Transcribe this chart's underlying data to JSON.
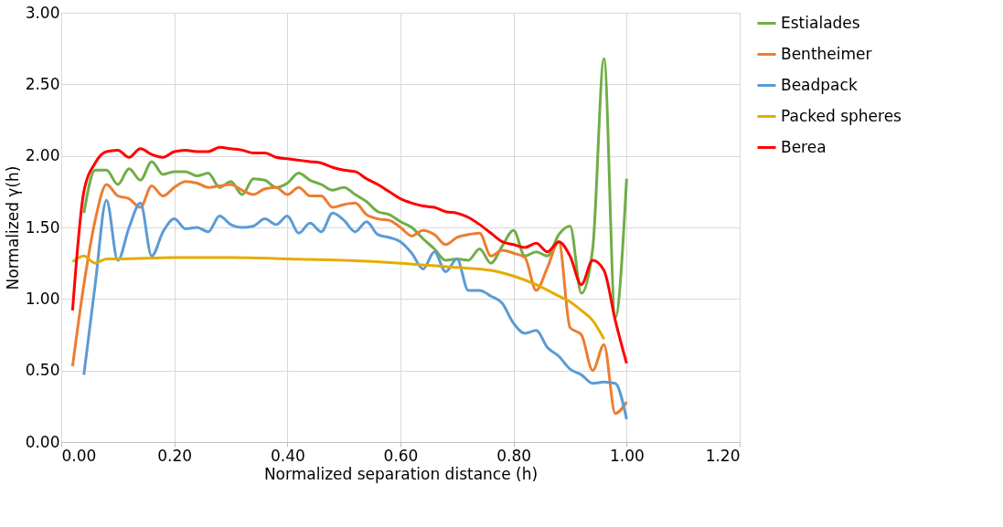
{
  "chart_data": {
    "type": "line",
    "xlabel": "Normalized separation distance (h)",
    "ylabel": "Normalized γ(h)",
    "xlim": [
      0,
      1.2
    ],
    "ylim": [
      0,
      3
    ],
    "xticks": [
      {
        "value": 0,
        "label": "0.00"
      },
      {
        "value": 0.2,
        "label": "0.20"
      },
      {
        "value": 0.4,
        "label": "0.40"
      },
      {
        "value": 0.6,
        "label": "0.60"
      },
      {
        "value": 0.8,
        "label": "0.80"
      },
      {
        "value": 1.0,
        "label": "1.00"
      },
      {
        "value": 1.2,
        "label": "1.20"
      }
    ],
    "yticks": [
      {
        "value": 0,
        "label": "0.00"
      },
      {
        "value": 0.5,
        "label": "0.50"
      },
      {
        "value": 1.0,
        "label": "1.00"
      },
      {
        "value": 1.5,
        "label": "1.50"
      },
      {
        "value": 2.0,
        "label": "2.00"
      },
      {
        "value": 2.5,
        "label": "2.50"
      },
      {
        "value": 3.0,
        "label": "3.00"
      }
    ],
    "grid": true,
    "legend": "right",
    "marker": "none",
    "line_style": "solid",
    "series": [
      {
        "name": "Estialades",
        "color": "#70ad47",
        "x": [
          0.04,
          0.06,
          0.08,
          0.1,
          0.12,
          0.14,
          0.16,
          0.18,
          0.2,
          0.22,
          0.24,
          0.26,
          0.28,
          0.3,
          0.32,
          0.34,
          0.36,
          0.38,
          0.4,
          0.42,
          0.44,
          0.46,
          0.48,
          0.5,
          0.52,
          0.54,
          0.56,
          0.58,
          0.6,
          0.62,
          0.64,
          0.66,
          0.68,
          0.7,
          0.72,
          0.74,
          0.76,
          0.78,
          0.8,
          0.82,
          0.84,
          0.86,
          0.88,
          0.9,
          0.92,
          0.94,
          0.96,
          0.98,
          1.0
        ],
        "values": [
          1.6,
          1.9,
          1.9,
          1.8,
          1.91,
          1.83,
          1.96,
          1.87,
          1.89,
          1.89,
          1.86,
          1.88,
          1.78,
          1.82,
          1.73,
          1.84,
          1.83,
          1.78,
          1.81,
          1.88,
          1.83,
          1.8,
          1.76,
          1.78,
          1.73,
          1.68,
          1.61,
          1.59,
          1.54,
          1.5,
          1.42,
          1.35,
          1.27,
          1.28,
          1.27,
          1.35,
          1.25,
          1.37,
          1.48,
          1.3,
          1.33,
          1.3,
          1.45,
          1.51,
          1.04,
          1.35,
          2.68,
          0.87,
          1.84
        ]
      },
      {
        "name": "Bentheimer",
        "color": "#ed7d31",
        "x": [
          0.02,
          0.04,
          0.06,
          0.08,
          0.1,
          0.12,
          0.14,
          0.16,
          0.18,
          0.2,
          0.22,
          0.24,
          0.26,
          0.28,
          0.3,
          0.32,
          0.34,
          0.36,
          0.38,
          0.4,
          0.42,
          0.44,
          0.46,
          0.48,
          0.5,
          0.52,
          0.54,
          0.56,
          0.58,
          0.6,
          0.62,
          0.64,
          0.66,
          0.68,
          0.7,
          0.72,
          0.74,
          0.76,
          0.78,
          0.8,
          0.82,
          0.84,
          0.86,
          0.88,
          0.9,
          0.92,
          0.94,
          0.96,
          0.98,
          1.0
        ],
        "values": [
          0.53,
          1.1,
          1.55,
          1.8,
          1.72,
          1.7,
          1.64,
          1.79,
          1.72,
          1.78,
          1.82,
          1.81,
          1.78,
          1.79,
          1.8,
          1.76,
          1.73,
          1.77,
          1.78,
          1.73,
          1.78,
          1.72,
          1.72,
          1.64,
          1.66,
          1.67,
          1.59,
          1.56,
          1.55,
          1.5,
          1.44,
          1.48,
          1.45,
          1.38,
          1.43,
          1.45,
          1.46,
          1.3,
          1.34,
          1.32,
          1.29,
          1.06,
          1.22,
          1.4,
          0.8,
          0.75,
          0.5,
          0.68,
          0.2,
          0.28
        ]
      },
      {
        "name": "Beadpack",
        "color": "#5b9bd5",
        "x": [
          0.04,
          0.06,
          0.08,
          0.1,
          0.12,
          0.14,
          0.16,
          0.18,
          0.2,
          0.22,
          0.24,
          0.26,
          0.28,
          0.3,
          0.32,
          0.34,
          0.36,
          0.38,
          0.4,
          0.42,
          0.44,
          0.46,
          0.48,
          0.5,
          0.52,
          0.54,
          0.56,
          0.58,
          0.6,
          0.62,
          0.64,
          0.66,
          0.68,
          0.7,
          0.72,
          0.74,
          0.76,
          0.78,
          0.8,
          0.82,
          0.84,
          0.86,
          0.88,
          0.9,
          0.92,
          0.94,
          0.96,
          0.98,
          1.0
        ],
        "values": [
          0.47,
          1.1,
          1.69,
          1.27,
          1.5,
          1.67,
          1.3,
          1.47,
          1.56,
          1.49,
          1.5,
          1.47,
          1.58,
          1.52,
          1.5,
          1.51,
          1.56,
          1.52,
          1.58,
          1.46,
          1.53,
          1.47,
          1.6,
          1.55,
          1.47,
          1.54,
          1.45,
          1.43,
          1.4,
          1.32,
          1.21,
          1.33,
          1.19,
          1.28,
          1.06,
          1.06,
          1.02,
          0.97,
          0.83,
          0.76,
          0.78,
          0.66,
          0.6,
          0.51,
          0.47,
          0.41,
          0.42,
          0.41,
          0.16
        ]
      },
      {
        "name": "Packed spheres",
        "color": "#e5ac00",
        "x": [
          0.02,
          0.04,
          0.06,
          0.08,
          0.1,
          0.2,
          0.3,
          0.4,
          0.5,
          0.6,
          0.7,
          0.76,
          0.8,
          0.84,
          0.88,
          0.9,
          0.92,
          0.94,
          0.96
        ],
        "values": [
          1.26,
          1.3,
          1.25,
          1.28,
          1.28,
          1.29,
          1.29,
          1.28,
          1.27,
          1.25,
          1.22,
          1.2,
          1.16,
          1.1,
          1.02,
          0.98,
          0.92,
          0.85,
          0.72
        ]
      },
      {
        "name": "Berea",
        "color": "#ff0000",
        "x": [
          0.02,
          0.04,
          0.06,
          0.08,
          0.1,
          0.12,
          0.14,
          0.16,
          0.18,
          0.2,
          0.22,
          0.24,
          0.26,
          0.28,
          0.3,
          0.32,
          0.34,
          0.36,
          0.38,
          0.4,
          0.42,
          0.44,
          0.46,
          0.48,
          0.5,
          0.52,
          0.54,
          0.56,
          0.58,
          0.6,
          0.62,
          0.64,
          0.66,
          0.68,
          0.7,
          0.72,
          0.74,
          0.76,
          0.78,
          0.8,
          0.82,
          0.84,
          0.86,
          0.88,
          0.9,
          0.92,
          0.94,
          0.96,
          0.98,
          1.0
        ],
        "values": [
          0.92,
          1.75,
          1.95,
          2.03,
          2.04,
          1.99,
          2.05,
          2.01,
          1.99,
          2.03,
          2.04,
          2.03,
          2.03,
          2.06,
          2.05,
          2.04,
          2.02,
          2.02,
          1.99,
          1.98,
          1.97,
          1.96,
          1.95,
          1.92,
          1.9,
          1.89,
          1.84,
          1.8,
          1.75,
          1.7,
          1.67,
          1.65,
          1.64,
          1.61,
          1.6,
          1.57,
          1.52,
          1.46,
          1.4,
          1.38,
          1.36,
          1.39,
          1.33,
          1.4,
          1.3,
          1.1,
          1.27,
          1.2,
          0.85,
          0.55
        ]
      }
    ]
  }
}
